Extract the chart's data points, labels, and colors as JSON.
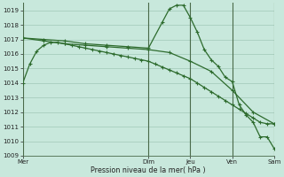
{
  "background_color": "#c8e8dc",
  "grid_color": "#a0c8b8",
  "line_color": "#2d6b2d",
  "vline_color": "#4a6a4a",
  "xlabel": "Pression niveau de la mer( hPa )",
  "ylim": [
    1009,
    1019.5
  ],
  "yticks": [
    1009,
    1010,
    1011,
    1012,
    1013,
    1014,
    1015,
    1016,
    1017,
    1018,
    1019
  ],
  "day_labels": [
    "Mer",
    "Dim",
    "Jeu",
    "Ven",
    "Sam"
  ],
  "xlim_hours": [
    0,
    144
  ],
  "day_hours": [
    0,
    72,
    96,
    120,
    144
  ],
  "series1_hours": [
    0,
    4,
    8,
    12,
    16,
    20,
    24,
    28,
    32,
    36,
    40,
    44,
    48,
    52,
    56,
    60,
    64,
    68,
    72,
    76,
    80,
    84,
    88,
    92,
    96,
    100,
    104,
    108,
    112,
    116,
    120,
    124,
    128,
    132,
    136,
    140,
    144
  ],
  "series1_vals": [
    1014.0,
    1015.3,
    1016.2,
    1016.6,
    1016.8,
    1016.8,
    1016.7,
    1016.6,
    1016.5,
    1016.4,
    1016.3,
    1016.2,
    1016.1,
    1016.0,
    1015.9,
    1015.8,
    1015.7,
    1015.6,
    1015.5,
    1015.3,
    1015.1,
    1014.9,
    1014.7,
    1014.5,
    1014.3,
    1014.0,
    1013.7,
    1013.4,
    1013.1,
    1012.8,
    1012.5,
    1012.2,
    1011.9,
    1011.6,
    1011.3,
    1011.2,
    1011.2
  ],
  "series2_hours": [
    0,
    12,
    24,
    36,
    48,
    60,
    72,
    80,
    84,
    88,
    92,
    96,
    100,
    104,
    108,
    112,
    116,
    120,
    124,
    128,
    132,
    136,
    140,
    144
  ],
  "series2_vals": [
    1017.1,
    1017.0,
    1016.9,
    1016.7,
    1016.6,
    1016.5,
    1016.4,
    1018.2,
    1019.1,
    1019.35,
    1019.35,
    1018.5,
    1017.5,
    1016.3,
    1015.6,
    1015.15,
    1014.4,
    1014.1,
    1012.5,
    1011.8,
    1011.3,
    1010.3,
    1010.3,
    1009.5
  ],
  "series3_hours": [
    0,
    12,
    24,
    36,
    48,
    60,
    72,
    84,
    96,
    108,
    120,
    132,
    144
  ],
  "series3_vals": [
    1017.1,
    1016.9,
    1016.7,
    1016.6,
    1016.5,
    1016.4,
    1016.3,
    1016.1,
    1015.5,
    1014.8,
    1013.5,
    1012.0,
    1011.2
  ]
}
